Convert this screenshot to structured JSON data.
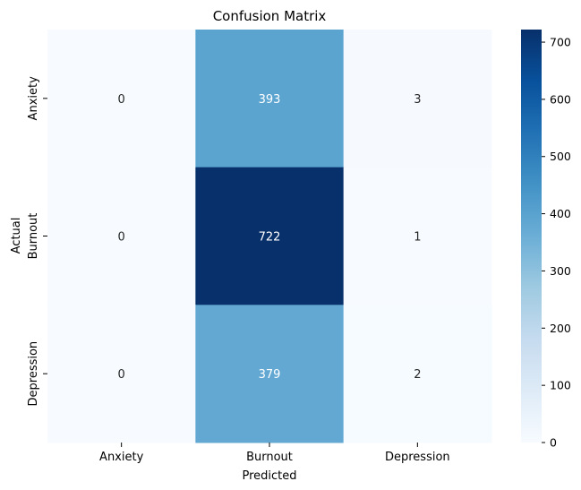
{
  "chart_data": {
    "type": "heatmap",
    "title": "Confusion Matrix",
    "xlabel": "Predicted",
    "ylabel": "Actual",
    "x_categories": [
      "Anxiety",
      "Burnout",
      "Depression"
    ],
    "y_categories": [
      "Anxiety",
      "Burnout",
      "Depression"
    ],
    "values": [
      [
        0,
        393,
        3
      ],
      [
        0,
        722,
        1
      ],
      [
        0,
        379,
        2
      ]
    ],
    "colormap": "Blues",
    "colorbar": {
      "vmin": 0,
      "vmax": 722,
      "ticks": [
        0,
        100,
        200,
        300,
        400,
        500,
        600,
        700
      ]
    },
    "colors": {
      "low": "#f7fbff",
      "high": "#08306b"
    }
  }
}
